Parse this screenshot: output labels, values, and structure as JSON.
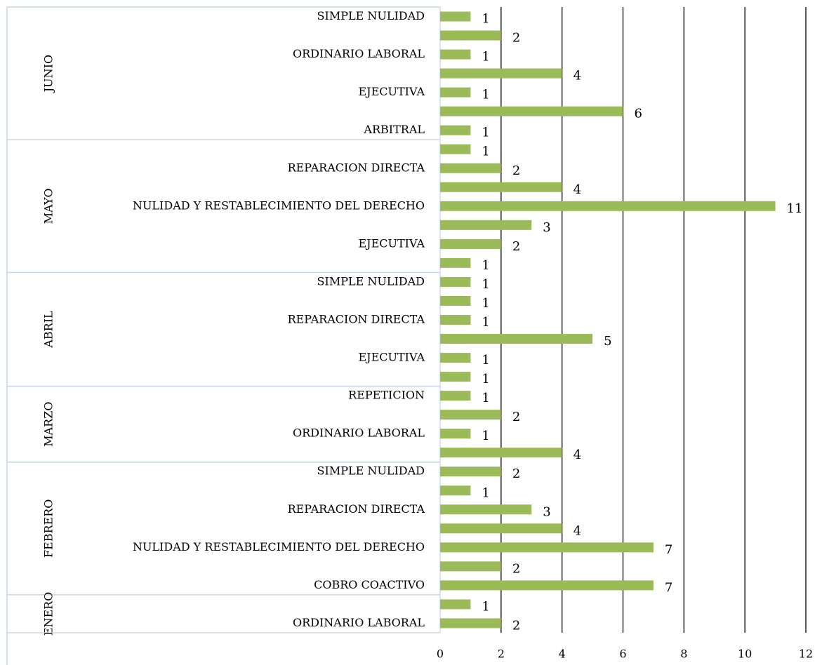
{
  "chart_data": {
    "type": "bar",
    "orientation": "horizontal",
    "color": "#9bbb59",
    "xlim": [
      0,
      12
    ],
    "xticks": [
      0,
      2,
      4,
      6,
      8,
      10,
      12
    ],
    "grid": true,
    "groups": [
      {
        "name": "JUNIO",
        "categories": [
          "SIMPLE NULIDAD",
          null,
          "ORDINARIO LABORAL",
          null,
          "EJECUTIVA",
          null,
          "ARBITRAL"
        ],
        "values": [
          1,
          2,
          1,
          4,
          1,
          6,
          1
        ]
      },
      {
        "name": "MAYO",
        "categories": [
          null,
          "REPARACION DIRECTA",
          null,
          "NULIDAD Y RESTABLECIMIENTO DEL DERECHO",
          null,
          "EJECUTIVA",
          null
        ],
        "values": [
          1,
          2,
          4,
          11,
          3,
          2,
          1
        ]
      },
      {
        "name": "ABRIL",
        "categories": [
          "SIMPLE NULIDAD",
          null,
          "REPARACION DIRECTA",
          null,
          "EJECUTIVA",
          null
        ],
        "values": [
          1,
          1,
          1,
          5,
          1,
          1
        ]
      },
      {
        "name": "MARZO",
        "categories": [
          "REPETICION",
          null,
          "ORDINARIO LABORAL",
          null
        ],
        "values": [
          1,
          2,
          1,
          4
        ]
      },
      {
        "name": "FEBRERO",
        "categories": [
          "SIMPLE NULIDAD",
          null,
          "REPARACION DIRECTA",
          null,
          "NULIDAD Y RESTABLECIMIENTO DEL DERECHO",
          null,
          "COBRO COACTIVO"
        ],
        "values": [
          2,
          1,
          3,
          4,
          7,
          2,
          7
        ]
      },
      {
        "name": "ENERO",
        "categories": [
          null,
          "ORDINARIO LABORAL"
        ],
        "values": [
          1,
          2
        ]
      }
    ]
  }
}
